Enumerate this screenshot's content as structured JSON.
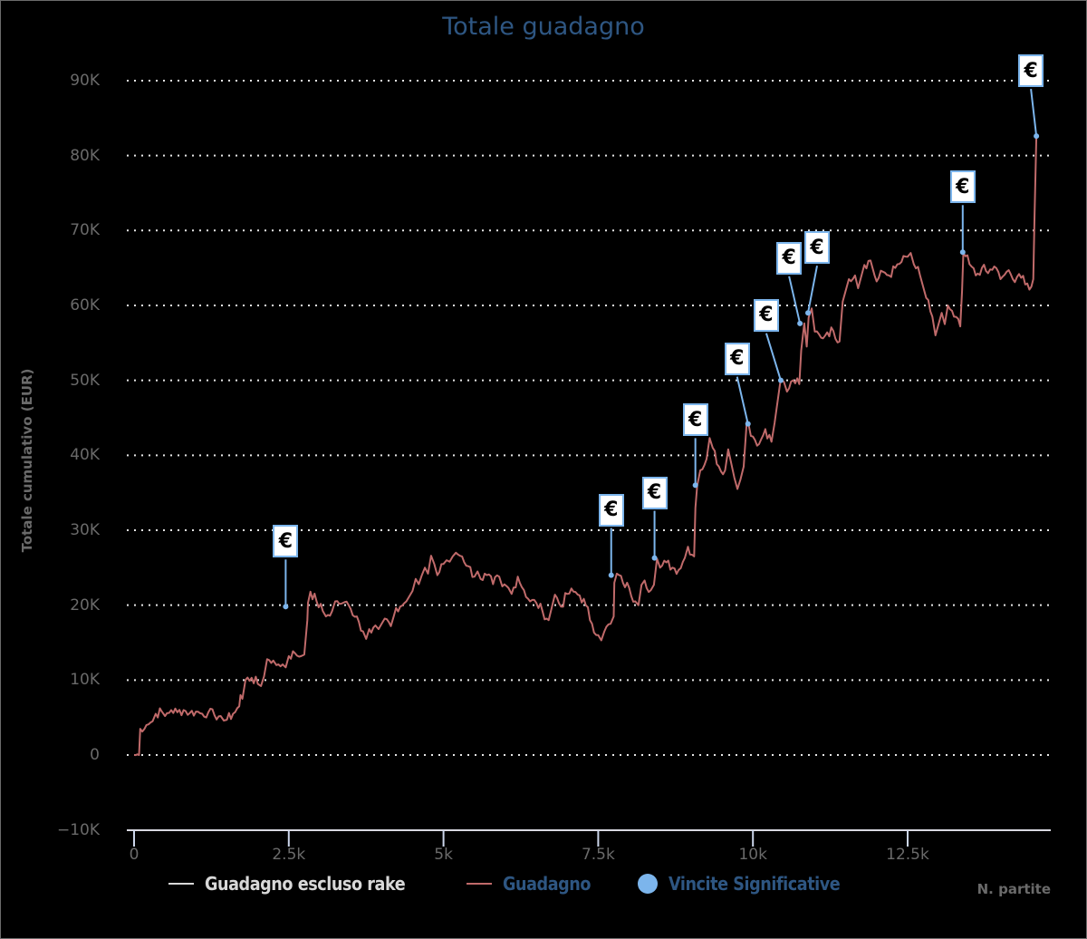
{
  "chart_data": {
    "type": "line",
    "title": "Totale guadagno",
    "xlabel": "N. partite",
    "ylabel": "Totale cumulativo (EUR)",
    "xlim": [
      0,
      14800
    ],
    "ylim": [
      -10000,
      90000
    ],
    "y_ticks": [
      {
        "value": 90000,
        "label": "90K"
      },
      {
        "value": 80000,
        "label": "80K"
      },
      {
        "value": 70000,
        "label": "70K"
      },
      {
        "value": 60000,
        "label": "60K"
      },
      {
        "value": 50000,
        "label": "50K"
      },
      {
        "value": 40000,
        "label": "40K"
      },
      {
        "value": 30000,
        "label": "30K"
      },
      {
        "value": 20000,
        "label": "20K"
      },
      {
        "value": 10000,
        "label": "10K"
      },
      {
        "value": 0,
        "label": "0"
      },
      {
        "value": -10000,
        "label": "−10K"
      }
    ],
    "x_ticks": [
      {
        "value": 0,
        "label": "0"
      },
      {
        "value": 2500,
        "label": "2.5k"
      },
      {
        "value": 5000,
        "label": "5k"
      },
      {
        "value": 7500,
        "label": "7.5k"
      },
      {
        "value": 10000,
        "label": "10k"
      },
      {
        "value": 12500,
        "label": "12.5k"
      }
    ],
    "grid": {
      "y": true,
      "x": false,
      "style": "dotted"
    },
    "legend_position": "bottom",
    "series": [
      {
        "name": "Guadagno escluso rake",
        "color": "#d8d8d8",
        "visible": false,
        "points": []
      },
      {
        "name": "Guadagno",
        "color": "#c06a6a",
        "points": [
          [
            0,
            0
          ],
          [
            80,
            0
          ],
          [
            100,
            3500
          ],
          [
            200,
            4000
          ],
          [
            300,
            4500
          ],
          [
            350,
            5500
          ],
          [
            450,
            5800
          ],
          [
            500,
            5200
          ],
          [
            600,
            6000
          ],
          [
            700,
            5700
          ],
          [
            800,
            6000
          ],
          [
            900,
            5600
          ],
          [
            1000,
            5800
          ],
          [
            1100,
            5500
          ],
          [
            1200,
            5700
          ],
          [
            1300,
            5300
          ],
          [
            1400,
            5200
          ],
          [
            1450,
            4600
          ],
          [
            1500,
            4700
          ],
          [
            1600,
            5500
          ],
          [
            1700,
            6500
          ],
          [
            1720,
            8000
          ],
          [
            1750,
            7500
          ],
          [
            1800,
            10000
          ],
          [
            1900,
            10300
          ],
          [
            2000,
            9500
          ],
          [
            2050,
            9200
          ],
          [
            2100,
            10500
          ],
          [
            2150,
            12800
          ],
          [
            2250,
            12600
          ],
          [
            2300,
            12000
          ],
          [
            2400,
            12100
          ],
          [
            2450,
            11700
          ],
          [
            2500,
            13200
          ],
          [
            2600,
            13600
          ],
          [
            2700,
            13200
          ],
          [
            2750,
            13400
          ],
          [
            2800,
            18000
          ],
          [
            2810,
            20300
          ],
          [
            2850,
            21800
          ],
          [
            2950,
            20500
          ],
          [
            3050,
            19200
          ],
          [
            3100,
            18500
          ],
          [
            3200,
            19200
          ],
          [
            3250,
            20500
          ],
          [
            3350,
            20200
          ],
          [
            3400,
            20400
          ],
          [
            3500,
            19500
          ],
          [
            3600,
            18500
          ],
          [
            3700,
            16500
          ],
          [
            3750,
            15500
          ],
          [
            3800,
            16800
          ],
          [
            3900,
            17300
          ],
          [
            3950,
            16800
          ],
          [
            4000,
            17500
          ],
          [
            4050,
            18200
          ],
          [
            4150,
            17200
          ],
          [
            4200,
            18600
          ],
          [
            4300,
            19800
          ],
          [
            4400,
            20500
          ],
          [
            4450,
            21200
          ],
          [
            4500,
            21900
          ],
          [
            4550,
            23500
          ],
          [
            4600,
            22800
          ],
          [
            4650,
            24000
          ],
          [
            4700,
            25000
          ],
          [
            4750,
            24200
          ],
          [
            4800,
            26600
          ],
          [
            4850,
            25500
          ],
          [
            4900,
            24000
          ],
          [
            5000,
            25500
          ],
          [
            5050,
            26000
          ],
          [
            5100,
            25800
          ],
          [
            5150,
            26500
          ],
          [
            5200,
            27000
          ],
          [
            5300,
            26500
          ],
          [
            5400,
            25200
          ],
          [
            5500,
            23800
          ],
          [
            5550,
            24500
          ],
          [
            5600,
            23500
          ],
          [
            5700,
            24000
          ],
          [
            5800,
            22800
          ],
          [
            5900,
            23800
          ],
          [
            5950,
            22500
          ],
          [
            6050,
            22300
          ],
          [
            6100,
            21500
          ],
          [
            6200,
            23800
          ],
          [
            6300,
            22000
          ],
          [
            6400,
            20500
          ],
          [
            6500,
            20300
          ],
          [
            6600,
            19200
          ],
          [
            6700,
            18000
          ],
          [
            6800,
            21400
          ],
          [
            6900,
            19800
          ],
          [
            7000,
            21500
          ],
          [
            7100,
            21800
          ],
          [
            7200,
            21300
          ],
          [
            7300,
            20000
          ],
          [
            7400,
            17500
          ],
          [
            7500,
            16000
          ],
          [
            7550,
            15300
          ],
          [
            7600,
            16500
          ],
          [
            7700,
            17500
          ],
          [
            7750,
            18500
          ],
          [
            7760,
            23000
          ],
          [
            7800,
            24200
          ],
          [
            7900,
            23000
          ],
          [
            8000,
            22300
          ],
          [
            8100,
            20500
          ],
          [
            8150,
            20000
          ],
          [
            8200,
            22700
          ],
          [
            8250,
            23300
          ],
          [
            8350,
            22000
          ],
          [
            8400,
            22700
          ],
          [
            8450,
            26200
          ],
          [
            8500,
            25000
          ],
          [
            8600,
            25700
          ],
          [
            8700,
            25000
          ],
          [
            8800,
            24700
          ],
          [
            8900,
            26300
          ],
          [
            8950,
            27800
          ],
          [
            9050,
            26500
          ],
          [
            9070,
            33000
          ],
          [
            9100,
            36000
          ],
          [
            9150,
            38000
          ],
          [
            9250,
            39500
          ],
          [
            9300,
            42300
          ],
          [
            9350,
            41000
          ],
          [
            9450,
            38500
          ],
          [
            9550,
            38000
          ],
          [
            9600,
            40800
          ],
          [
            9700,
            37000
          ],
          [
            9750,
            35500
          ],
          [
            9800,
            36800
          ],
          [
            9850,
            38500
          ],
          [
            9900,
            44500
          ],
          [
            10000,
            42500
          ],
          [
            10100,
            41500
          ],
          [
            10200,
            43500
          ],
          [
            10300,
            41800
          ],
          [
            10350,
            44300
          ],
          [
            10450,
            50200
          ],
          [
            10500,
            49800
          ],
          [
            10550,
            48500
          ],
          [
            10650,
            50000
          ],
          [
            10750,
            49500
          ],
          [
            10780,
            54000
          ],
          [
            10830,
            57600
          ],
          [
            10870,
            54500
          ],
          [
            10900,
            58400
          ],
          [
            10950,
            59600
          ],
          [
            11000,
            56500
          ],
          [
            11100,
            55700
          ],
          [
            11200,
            56400
          ],
          [
            11300,
            56600
          ],
          [
            11400,
            55200
          ],
          [
            11450,
            60500
          ],
          [
            11550,
            63500
          ],
          [
            11650,
            64000
          ],
          [
            11700,
            62300
          ],
          [
            11800,
            65400
          ],
          [
            11900,
            66000
          ],
          [
            12000,
            63200
          ],
          [
            12100,
            64500
          ],
          [
            12200,
            64000
          ],
          [
            12300,
            65000
          ],
          [
            12400,
            65800
          ],
          [
            12500,
            66500
          ],
          [
            12550,
            67000
          ],
          [
            12600,
            65500
          ],
          [
            12700,
            64000
          ],
          [
            12800,
            61000
          ],
          [
            12900,
            58500
          ],
          [
            12950,
            56000
          ],
          [
            13050,
            59000
          ],
          [
            13100,
            57500
          ],
          [
            13150,
            60000
          ],
          [
            13250,
            58500
          ],
          [
            13350,
            57200
          ],
          [
            13380,
            62000
          ],
          [
            13400,
            67000
          ],
          [
            13500,
            65500
          ],
          [
            13600,
            64000
          ],
          [
            13700,
            65000
          ],
          [
            13800,
            64300
          ],
          [
            13900,
            65200
          ],
          [
            14000,
            63500
          ],
          [
            14100,
            64500
          ],
          [
            14200,
            63500
          ],
          [
            14300,
            64200
          ],
          [
            14400,
            62800
          ],
          [
            14500,
            62500
          ],
          [
            14530,
            63500
          ],
          [
            14550,
            72000
          ],
          [
            14580,
            82600
          ],
          [
            14620,
            82600
          ]
        ]
      },
      {
        "name": "Vincite Significative",
        "color": "#7cb5ec",
        "type": "flags",
        "flag_text": "€",
        "points": [
          {
            "x": 2450,
            "y": 19800,
            "flag_dx": 0,
            "flag_dy": -52
          },
          {
            "x": 7710,
            "y": 24000,
            "flag_dx": 0,
            "flag_dy": -52
          },
          {
            "x": 8410,
            "y": 26300,
            "flag_dx": 0,
            "flag_dy": -52
          },
          {
            "x": 9070,
            "y": 36000,
            "flag_dx": 0,
            "flag_dy": -52
          },
          {
            "x": 9920,
            "y": 44200,
            "flag_dx": -12,
            "flag_dy": -52
          },
          {
            "x": 10450,
            "y": 50000,
            "flag_dx": -16,
            "flag_dy": -52
          },
          {
            "x": 10760,
            "y": 57600,
            "flag_dx": -12,
            "flag_dy": -52
          },
          {
            "x": 10890,
            "y": 59000,
            "flag_dx": 10,
            "flag_dy": -52
          },
          {
            "x": 13390,
            "y": 67100,
            "flag_dx": 0,
            "flag_dy": -52
          },
          {
            "x": 14580,
            "y": 82600,
            "flag_dx": -6,
            "flag_dy": -52
          }
        ]
      }
    ]
  },
  "legend": {
    "items": [
      {
        "label": "Guadagno escluso rake",
        "color": "#d8d8d8",
        "text_color": "#d8d8d8",
        "symbol": "line"
      },
      {
        "label": "Guadagno",
        "color": "#c06a6a",
        "text_color": "#2e5682",
        "symbol": "line"
      },
      {
        "label": "Vincite Significative",
        "color": "#7cb5ec",
        "text_color": "#2e5682",
        "symbol": "dot"
      }
    ]
  }
}
